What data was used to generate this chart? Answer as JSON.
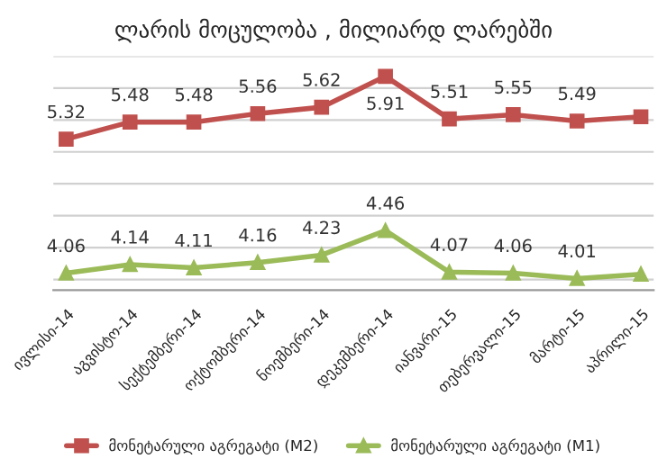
{
  "chart_data": {
    "type": "line",
    "title": "ლარის მოცულობა , მილიარდ ლარებში",
    "categories": [
      "ივლისი-14",
      "აგვისტო-14",
      "სექტემბერი-14",
      "ოქტომბერი-14",
      "ნოემბერი-14",
      "დეკემბერი-14",
      "იანვარი-15",
      "თებერვალი-15",
      "მარტი-15",
      "აპრილი-15"
    ],
    "series": [
      {
        "name": "მონეტარული აგრეგატი (M2)",
        "color": "#c0504d",
        "marker": "square",
        "values": [
          5.32,
          5.48,
          5.48,
          5.56,
          5.62,
          5.91,
          5.51,
          5.55,
          5.49,
          5.53
        ],
        "value_labels": [
          "5.32",
          "5.48",
          "5.48",
          "5.56",
          "5.62",
          "5.91",
          "5.51",
          "5.55",
          "5.49",
          null
        ]
      },
      {
        "name": "მონეტარული აგრეგატი (M1)",
        "color": "#9bbb59",
        "marker": "triangle",
        "values": [
          4.06,
          4.14,
          4.11,
          4.16,
          4.23,
          4.46,
          4.07,
          4.06,
          4.01,
          4.05
        ],
        "value_labels": [
          "4.06",
          "4.14",
          "4.11",
          "4.16",
          "4.23",
          "4.46",
          "4.07",
          "4.06",
          "4.01",
          null
        ]
      }
    ],
    "ylim": [
      3.9,
      6.1
    ],
    "yticks": [
      {
        "value": 4.0,
        "label": null
      },
      {
        "value": 4.3,
        "label": null
      },
      {
        "value": 4.6,
        "label": null
      },
      {
        "value": 4.9,
        "label": null
      },
      {
        "value": 5.2,
        "label": null
      },
      {
        "value": 5.5,
        "label": null
      },
      {
        "value": 5.8,
        "label": null
      },
      {
        "value": 6.1,
        "label": null
      }
    ],
    "grid": "y",
    "legend": "bottom",
    "tick_labels": "x"
  }
}
